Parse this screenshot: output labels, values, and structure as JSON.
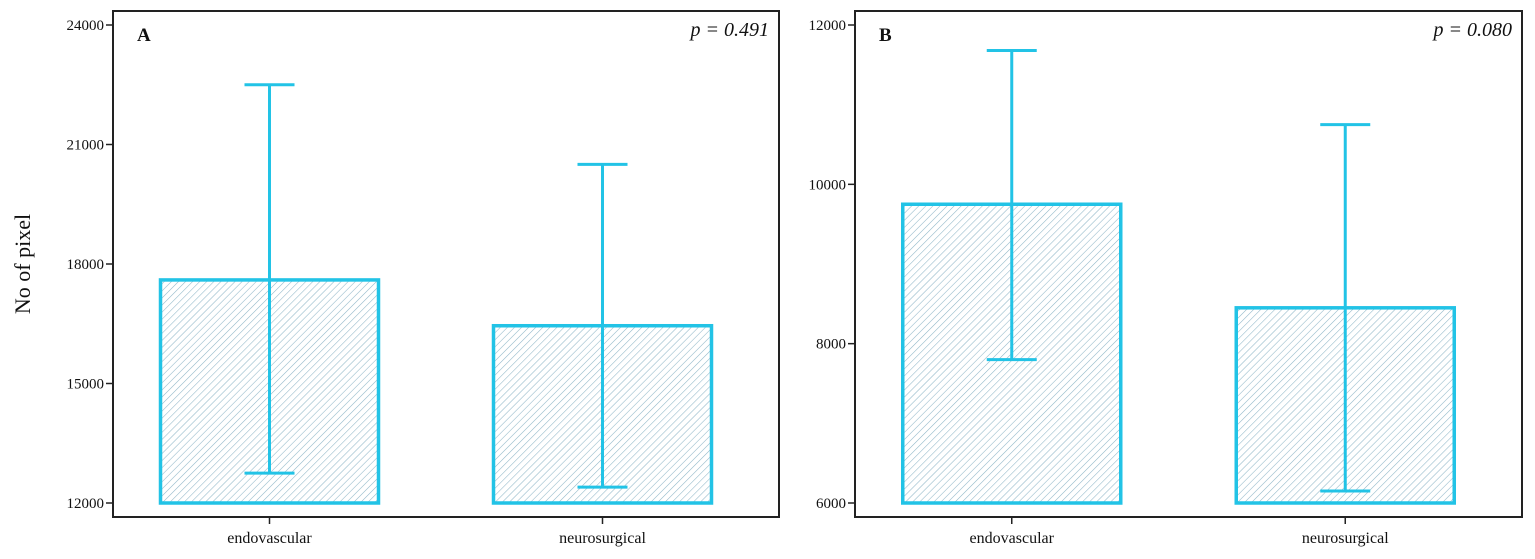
{
  "chart_data": [
    {
      "type": "bar",
      "panel_label": "A",
      "annotation": "p = 0.491",
      "ylabel": "No of  pixel",
      "xlabel": "",
      "categories": [
        "endovascular",
        "neurosurgical"
      ],
      "values": [
        17600,
        16450
      ],
      "error_low": [
        12750,
        12400
      ],
      "error_high": [
        22500,
        20500
      ],
      "ylim": [
        12000,
        24000
      ],
      "yticks": [
        12000,
        15000,
        18000,
        21000,
        24000
      ],
      "color": "#22c3e6",
      "fill_pattern": "diagonal-hatch",
      "grid": false
    },
    {
      "type": "bar",
      "panel_label": "B",
      "annotation": "p = 0.080",
      "ylabel": "",
      "xlabel": "",
      "categories": [
        "endovascular",
        "neurosurgical"
      ],
      "values": [
        9750,
        8450
      ],
      "error_low": [
        7800,
        6150
      ],
      "error_high": [
        11680,
        10750
      ],
      "ylim": [
        6000,
        12000
      ],
      "yticks": [
        6000,
        8000,
        10000,
        12000
      ],
      "color": "#22c3e6",
      "fill_pattern": "diagonal-hatch",
      "grid": false
    }
  ]
}
